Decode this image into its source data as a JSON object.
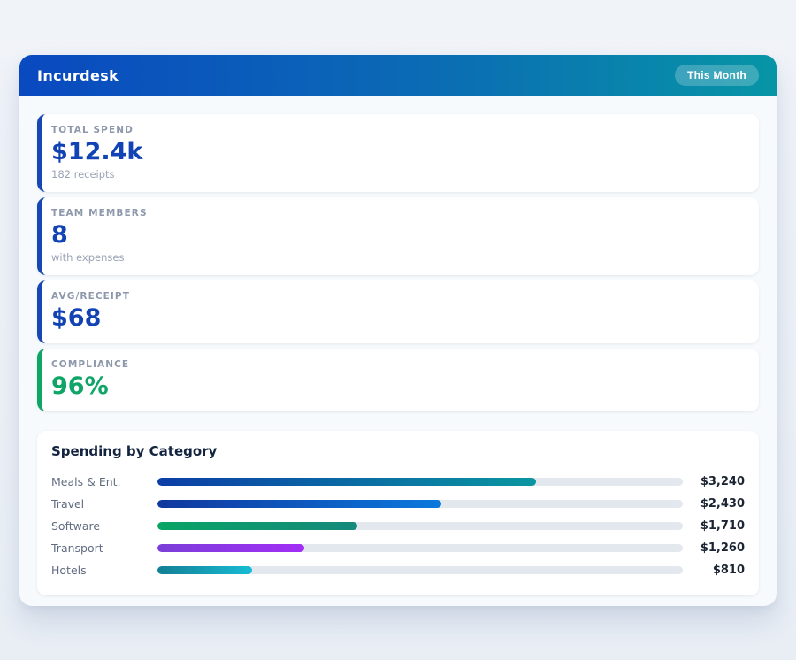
{
  "app": {
    "title": "Incurdesk",
    "period_badge": "This Month"
  },
  "stats": [
    {
      "label": "TOTAL SPEND",
      "value": "$12.4k",
      "sub": "182 receipts",
      "accent": "#1647b2",
      "value_color": "#1243b5"
    },
    {
      "label": "TEAM MEMBERS",
      "value": "8",
      "sub": "with expenses",
      "accent": "#1647b2",
      "value_color": "#1243b5"
    },
    {
      "label": "AVG/RECEIPT",
      "value": "$68",
      "sub": "",
      "accent": "#1647b2",
      "value_color": "#1243b5"
    },
    {
      "label": "COMPLIANCE",
      "value": "96%",
      "sub": "",
      "accent": "#10a564",
      "value_color": "#0ea566"
    }
  ],
  "chart_data": {
    "type": "bar",
    "title": "Spending by Category",
    "orientation": "horizontal",
    "max_scale": 4500,
    "categories": [
      "Meals & Ent.",
      "Travel",
      "Software",
      "Transport",
      "Hotels"
    ],
    "values": [
      3240,
      2430,
      1710,
      1260,
      810
    ],
    "rows": [
      {
        "label": "Meals & Ent.",
        "value": 3240,
        "value_label": "$3,240",
        "pct": 72,
        "color_start": "#0b3da6",
        "color_end": "#0a96a0"
      },
      {
        "label": "Travel",
        "value": 2430,
        "value_label": "$2,430",
        "pct": 54,
        "color_start": "#10379e",
        "color_end": "#0b79dd"
      },
      {
        "label": "Software",
        "value": 1710,
        "value_label": "$1,710",
        "pct": 38,
        "color_start": "#0aa465",
        "color_end": "#15897c"
      },
      {
        "label": "Transport",
        "value": 1260,
        "value_label": "$1,260",
        "pct": 28,
        "color_start": "#7a3fd8",
        "color_end": "#a22ef5"
      },
      {
        "label": "Hotels",
        "value": 810,
        "value_label": "$810",
        "pct": 18,
        "color_start": "#127f95",
        "color_end": "#17bcd4"
      }
    ],
    "track_color": "#e3e8ef",
    "grid": false,
    "legend": false
  }
}
